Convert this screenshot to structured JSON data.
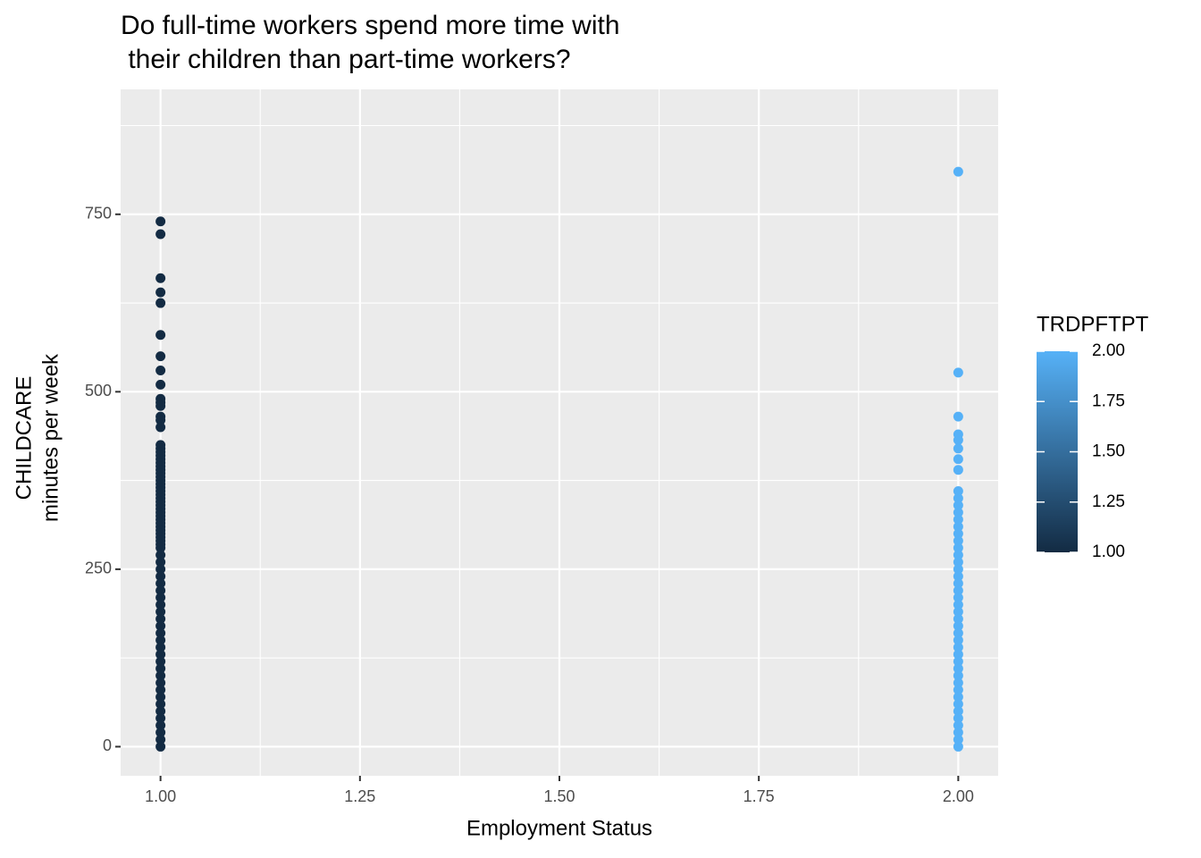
{
  "chart_data": {
    "type": "scatter",
    "title": [
      "Do full-time workers spend more time with",
      " their children than part-time workers?"
    ],
    "xlabel": "Employment Status",
    "ylabel": [
      "CHILDCARE",
      "minutes per week"
    ],
    "xlim": [
      0.95,
      2.05
    ],
    "ylim": [
      -41,
      926
    ],
    "xticks": [
      {
        "value": 1,
        "label": "1.00"
      },
      {
        "value": 1.25,
        "label": "1.25"
      },
      {
        "value": 1.5,
        "label": "1.50"
      },
      {
        "value": 1.75,
        "label": "1.75"
      },
      {
        "value": 2,
        "label": "2.00"
      }
    ],
    "yticks": [
      0,
      250,
      500,
      750
    ],
    "x_minor_ticks": [
      1.125,
      1.375,
      1.625,
      1.875
    ],
    "y_minor_ticks": [
      125,
      375,
      625,
      875
    ],
    "grid": true,
    "series": [
      {
        "x": 1,
        "color": "#132B43",
        "values": [
          740,
          722,
          660,
          640,
          625,
          580,
          550,
          530,
          510,
          490,
          485,
          480,
          465,
          460,
          450,
          425,
          420,
          415,
          410,
          405,
          400,
          395,
          390,
          385,
          380,
          375,
          370,
          365,
          360,
          355,
          350,
          345,
          340,
          335,
          330,
          325,
          320,
          315,
          310,
          305,
          300,
          295,
          290,
          285,
          280,
          270,
          260,
          250,
          240,
          230,
          220,
          210,
          200,
          190,
          180,
          170,
          160,
          150,
          140,
          130,
          120,
          110,
          100,
          90,
          80,
          70,
          60,
          50,
          40,
          30,
          20,
          10,
          0
        ]
      },
      {
        "x": 2,
        "color": "#56B1F7",
        "values": [
          810,
          527,
          465,
          440,
          432,
          420,
          405,
          390,
          360,
          350,
          340,
          330,
          320,
          310,
          300,
          290,
          280,
          270,
          260,
          250,
          240,
          230,
          220,
          210,
          200,
          190,
          180,
          170,
          160,
          150,
          140,
          130,
          120,
          110,
          100,
          90,
          80,
          70,
          60,
          50,
          40,
          30,
          20,
          10,
          0
        ]
      }
    ],
    "colorbar": {
      "title": "TRDPFTPT",
      "range": [
        1,
        2
      ],
      "colors": [
        "#132B43",
        "#56B1F7"
      ],
      "ticks": [
        {
          "value": 1,
          "label": "1.00"
        },
        {
          "value": 1.25,
          "label": "1.25"
        },
        {
          "value": 1.5,
          "label": "1.50"
        },
        {
          "value": 1.75,
          "label": "1.75"
        },
        {
          "value": 2,
          "label": "2.00"
        }
      ]
    }
  }
}
